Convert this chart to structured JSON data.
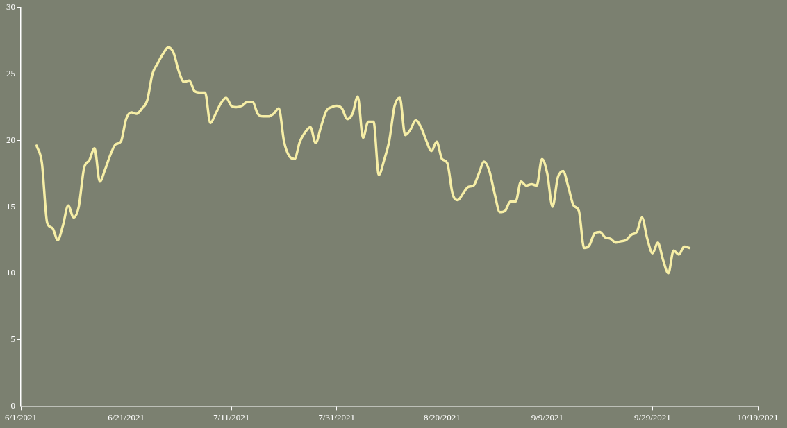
{
  "chart_data": {
    "type": "line",
    "marker": "none",
    "grid": false,
    "legend": false,
    "series": [
      {
        "color": "#f6eea6",
        "x": [
          "2021-06-04",
          "2021-06-05",
          "2021-06-06",
          "2021-06-07",
          "2021-06-08",
          "2021-06-09",
          "2021-06-10",
          "2021-06-11",
          "2021-06-12",
          "2021-06-13",
          "2021-06-14",
          "2021-06-15",
          "2021-06-16",
          "2021-06-17",
          "2021-06-18",
          "2021-06-19",
          "2021-06-20",
          "2021-06-21",
          "2021-06-22",
          "2021-06-23",
          "2021-06-24",
          "2021-06-25",
          "2021-06-26",
          "2021-06-27",
          "2021-06-28",
          "2021-06-29",
          "2021-06-30",
          "2021-07-01",
          "2021-07-02",
          "2021-07-03",
          "2021-07-04",
          "2021-07-05",
          "2021-07-06",
          "2021-07-07",
          "2021-07-08",
          "2021-07-09",
          "2021-07-10",
          "2021-07-11",
          "2021-07-12",
          "2021-07-13",
          "2021-07-14",
          "2021-07-15",
          "2021-07-16",
          "2021-07-17",
          "2021-07-18",
          "2021-07-19",
          "2021-07-20",
          "2021-07-21",
          "2021-07-22",
          "2021-07-23",
          "2021-07-24",
          "2021-07-25",
          "2021-07-26",
          "2021-07-27",
          "2021-07-28",
          "2021-07-29",
          "2021-07-30",
          "2021-07-31",
          "2021-08-01",
          "2021-08-02",
          "2021-08-03",
          "2021-08-04",
          "2021-08-05",
          "2021-08-06",
          "2021-08-07",
          "2021-08-08",
          "2021-08-09",
          "2021-08-10",
          "2021-08-11",
          "2021-08-12",
          "2021-08-13",
          "2021-08-14",
          "2021-08-15",
          "2021-08-16",
          "2021-08-17",
          "2021-08-18",
          "2021-08-19",
          "2021-08-20",
          "2021-08-21",
          "2021-08-22",
          "2021-08-23",
          "2021-08-24",
          "2021-08-25",
          "2021-08-26",
          "2021-08-27",
          "2021-08-28",
          "2021-08-29",
          "2021-08-30",
          "2021-08-31",
          "2021-09-01",
          "2021-09-02",
          "2021-09-03",
          "2021-09-04",
          "2021-09-05",
          "2021-09-06",
          "2021-09-07",
          "2021-09-08",
          "2021-09-09",
          "2021-09-10",
          "2021-09-11",
          "2021-09-12",
          "2021-09-13",
          "2021-09-14",
          "2021-09-15",
          "2021-09-16",
          "2021-09-17",
          "2021-09-18",
          "2021-09-19",
          "2021-09-20",
          "2021-09-21",
          "2021-09-22",
          "2021-09-23",
          "2021-09-24",
          "2021-09-25",
          "2021-09-26",
          "2021-09-27",
          "2021-09-28",
          "2021-09-29",
          "2021-09-30",
          "2021-10-01",
          "2021-10-02",
          "2021-10-03",
          "2021-10-04",
          "2021-10-05",
          "2021-10-06"
        ],
        "values": [
          19.6,
          18.3,
          13.8,
          13.4,
          12.5,
          13.6,
          15.1,
          14.2,
          15.0,
          17.9,
          18.5,
          19.4,
          16.9,
          17.8,
          18.9,
          19.7,
          19.9,
          21.6,
          22.1,
          22.0,
          22.4,
          23.0,
          25.0,
          25.8,
          26.5,
          27.0,
          26.6,
          25.2,
          24.4,
          24.5,
          23.7,
          23.6,
          23.6,
          21.3,
          22.0,
          22.8,
          23.2,
          22.6,
          22.5,
          22.6,
          22.9,
          22.9,
          22.0,
          21.8,
          21.8,
          22.0,
          22.4,
          19.9,
          18.8,
          18.6,
          19.9,
          20.6,
          21.0,
          19.8,
          21.0,
          22.2,
          22.5,
          22.6,
          22.4,
          21.6,
          22.0,
          23.3,
          20.2,
          21.4,
          21.4,
          17.4,
          18.5,
          20.0,
          22.6,
          23.2,
          20.4,
          20.8,
          21.5,
          21.0,
          20.0,
          19.2,
          19.9,
          18.6,
          18.3,
          16.0,
          15.5,
          16.0,
          16.5,
          16.6,
          17.5,
          18.4,
          17.7,
          16.0,
          14.6,
          14.7,
          15.4,
          15.4,
          16.9,
          16.6,
          16.7,
          16.6,
          18.6,
          17.5,
          15.0,
          17.2,
          17.7,
          16.5,
          15.1,
          14.7,
          11.9,
          12.1,
          13.0,
          13.1,
          12.7,
          12.6,
          12.3,
          12.4,
          12.5,
          12.9,
          13.1,
          14.2,
          12.6,
          11.5,
          12.3,
          11.0,
          10.0,
          11.7,
          11.4,
          12.0,
          11.9
        ]
      }
    ],
    "xlim": [
      "2021-06-01",
      "2021-10-19"
    ],
    "xticks": [
      {
        "value": "2021-06-01",
        "label": "6/1/2021"
      },
      {
        "value": "2021-06-21",
        "label": "6/21/2021"
      },
      {
        "value": "2021-07-11",
        "label": "7/11/2021"
      },
      {
        "value": "2021-07-31",
        "label": "7/31/2021"
      },
      {
        "value": "2021-08-20",
        "label": "8/20/2021"
      },
      {
        "value": "2021-09-09",
        "label": "9/9/2021"
      },
      {
        "value": "2021-09-29",
        "label": "9/29/2021"
      },
      {
        "value": "2021-10-19",
        "label": "10/19/2021"
      }
    ],
    "ylim": [
      0,
      30
    ],
    "yticks": [
      0,
      5,
      10,
      15,
      20,
      25,
      30
    ]
  }
}
